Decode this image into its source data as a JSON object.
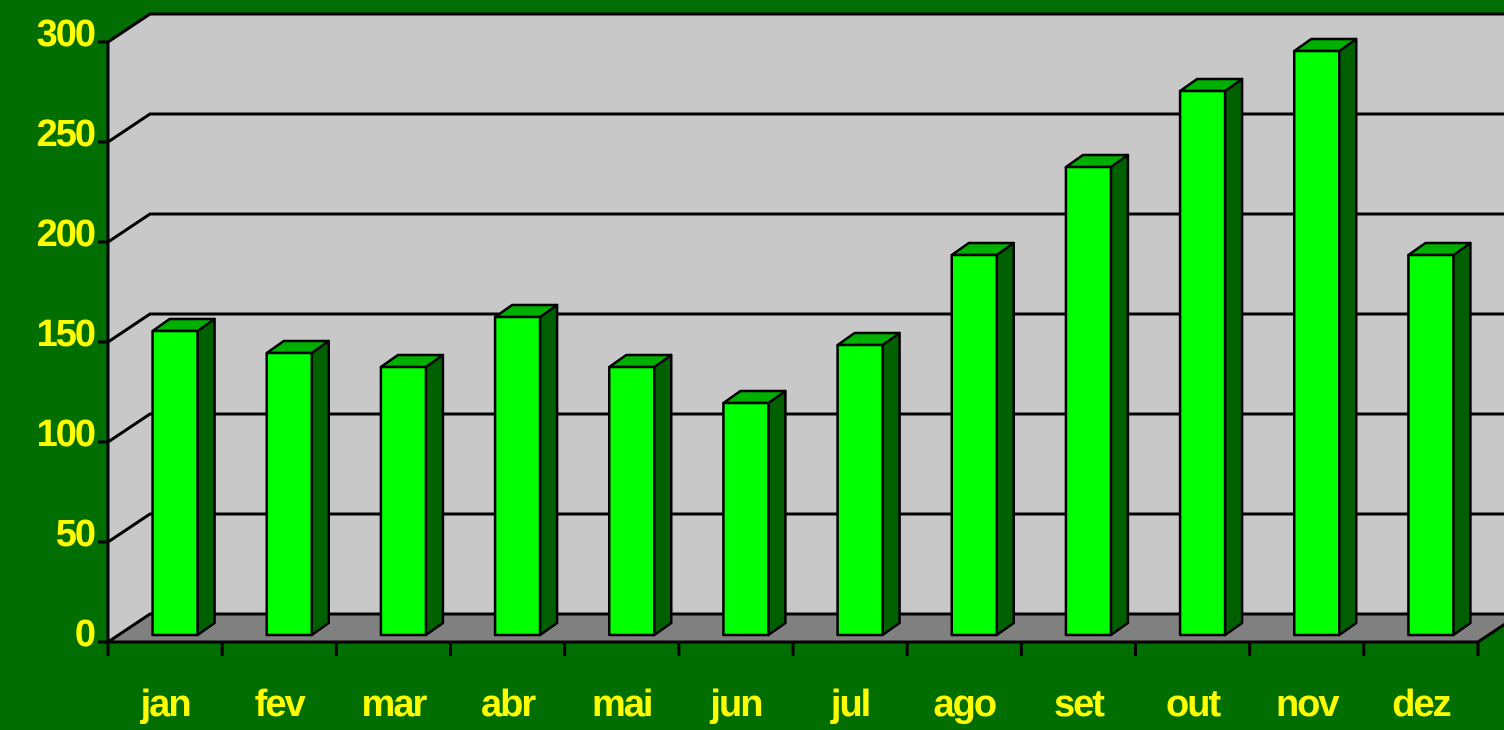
{
  "chart_data": {
    "type": "bar",
    "categories": [
      "jan",
      "fev",
      "mar",
      "abr",
      "mai",
      "jun",
      "jul",
      "ago",
      "set",
      "out",
      "nov",
      "dez"
    ],
    "values": [
      152,
      141,
      134,
      159,
      134,
      116,
      145,
      190,
      234,
      272,
      292,
      190
    ],
    "color": "#00ff00",
    "ylim": [
      0,
      300
    ],
    "yticks": [
      0,
      50,
      100,
      150,
      200,
      250,
      300
    ],
    "grid": true
  }
}
